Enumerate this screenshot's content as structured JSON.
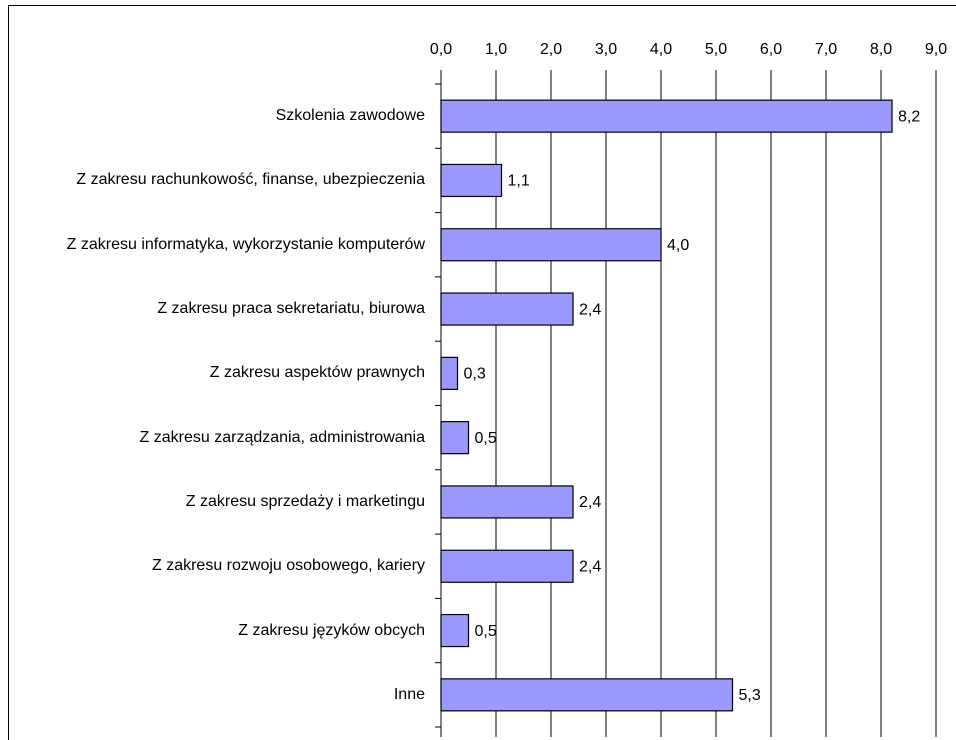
{
  "chart_data": {
    "type": "bar",
    "orientation": "horizontal",
    "categories": [
      "Szkolenia zawodowe",
      "Z zakresu rachunkowość, finanse, ubezpieczenia",
      "Z zakresu informatyka, wykorzystanie komputerów",
      "Z zakresu praca sekretariatu, biurowa",
      "Z zakresu aspektów prawnych",
      "Z zakresu zarządzania, administrowania",
      "Z zakresu sprzedaży i marketingu",
      "Z zakresu rozwoju osobowego, kariery",
      "Z zakresu języków obcych",
      "Inne"
    ],
    "values": [
      8.2,
      1.1,
      4.0,
      2.4,
      0.3,
      0.5,
      2.4,
      2.4,
      0.5,
      5.3
    ],
    "value_labels": [
      "8,2",
      "1,1",
      "4,0",
      "2,4",
      "0,3",
      "0,5",
      "2,4",
      "2,4",
      "0,5",
      "5,3"
    ],
    "color": "#9999ff",
    "xlim": [
      0,
      9
    ],
    "xticks": [
      {
        "value": 0,
        "label": "0,0"
      },
      {
        "value": 1,
        "label": "1,0"
      },
      {
        "value": 2,
        "label": "2,0"
      },
      {
        "value": 3,
        "label": "3,0"
      },
      {
        "value": 4,
        "label": "4,0"
      },
      {
        "value": 5,
        "label": "5,0"
      },
      {
        "value": 6,
        "label": "6,0"
      },
      {
        "value": 7,
        "label": "7,0"
      },
      {
        "value": 8,
        "label": "8,0"
      },
      {
        "value": 9,
        "label": "9,0"
      }
    ],
    "grid": true
  }
}
